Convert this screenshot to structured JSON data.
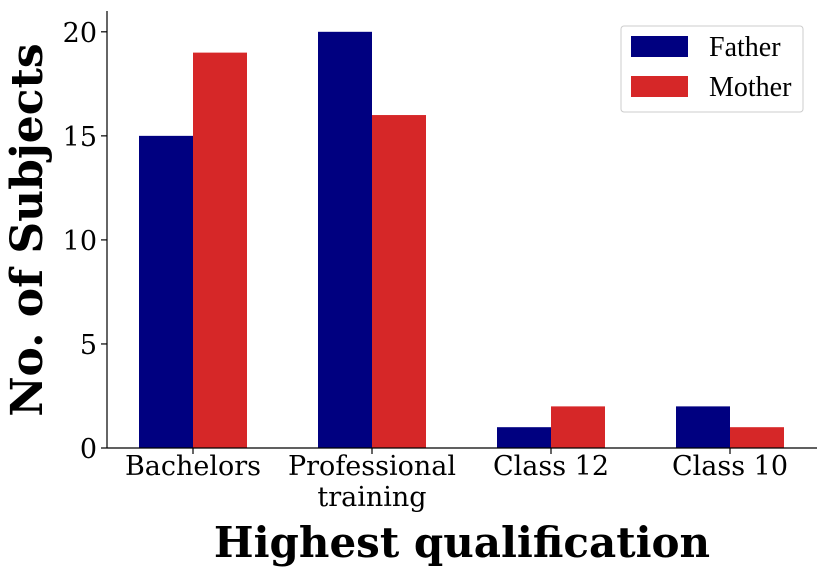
{
  "chart_data": {
    "type": "bar",
    "xlabel": "Highest qualification",
    "ylabel": "No. of Subjects",
    "categories": [
      "Bachelors",
      "Professional\ntraining",
      "Class 12",
      "Class 10"
    ],
    "series": [
      {
        "name": "Father",
        "color": "#000080",
        "values": [
          15,
          20,
          1,
          2
        ]
      },
      {
        "name": "Mother",
        "color": "#d62728",
        "values": [
          19,
          16,
          2,
          1
        ]
      }
    ],
    "ylim": [
      0,
      21
    ],
    "yticks": [
      0,
      5,
      10,
      15,
      20
    ],
    "grid": false,
    "legend": "top-right"
  }
}
